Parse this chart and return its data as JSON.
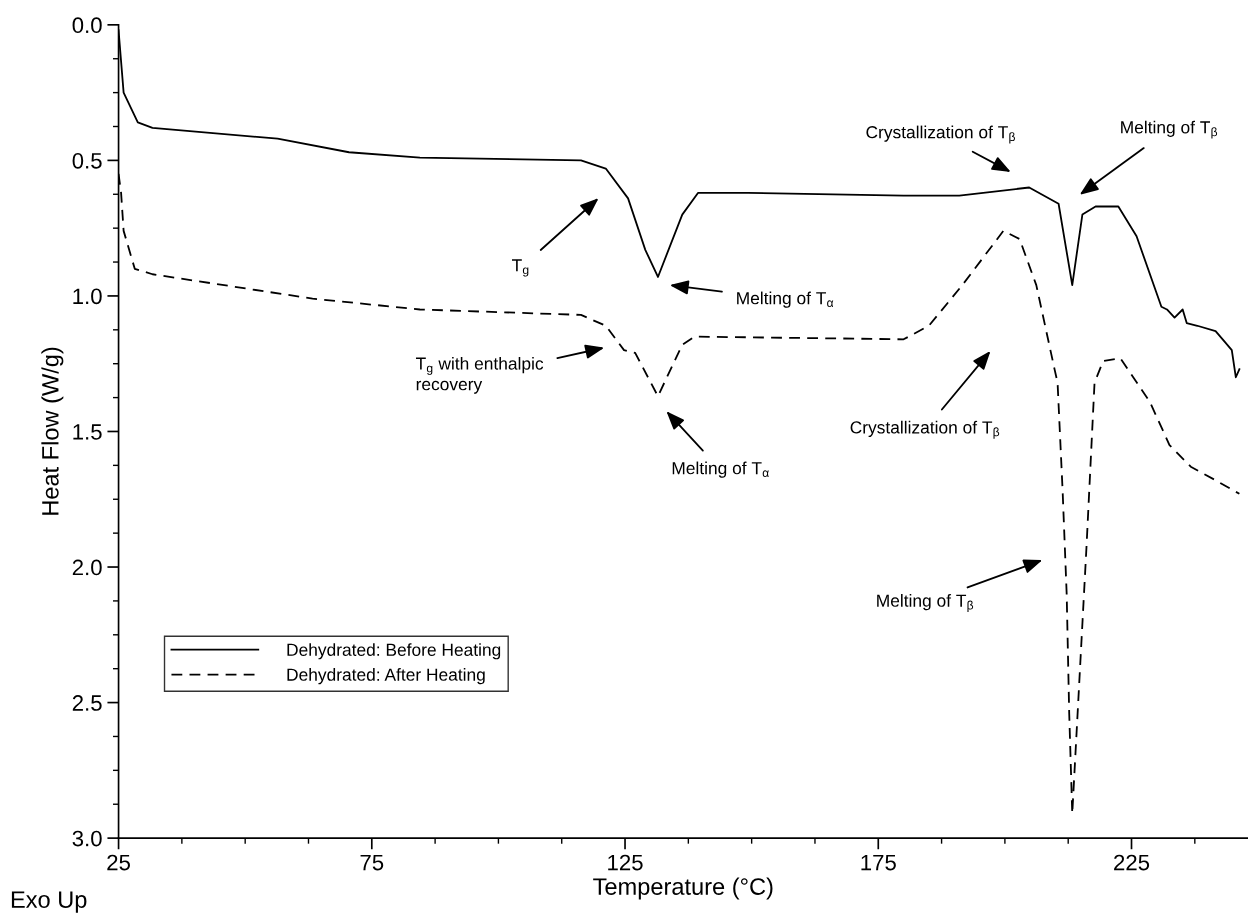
{
  "chart_data": {
    "type": "line",
    "xlabel": "Temperature (°C)",
    "ylabel": "Heat Flow (W/g)",
    "xlim": [
      25,
      248
    ],
    "xticks": [
      25,
      75,
      125,
      175,
      225
    ],
    "ylim": [
      3.0,
      0.0
    ],
    "yticks": [
      {
        "value": 0,
        "label": "0.0"
      },
      {
        "value": 0.5,
        "label": "0.5"
      },
      {
        "value": 1.0,
        "label": "1.0"
      },
      {
        "value": 1.5,
        "label": "1.5"
      },
      {
        "value": 2.0,
        "label": "2.0"
      },
      {
        "value": 2.5,
        "label": "2.5"
      },
      {
        "value": 3.0,
        "label": "3.0"
      }
    ],
    "grid": false,
    "legend": "bottom left",
    "marker": "none",
    "series": [
      {
        "name": "Dehydrated: Before Heating",
        "color": "#000000",
        "line_style": "solid",
        "x": [
          25,
          26,
          28.8,
          31.7,
          56.4,
          70.5,
          84.5,
          116.3,
          121.2,
          125.6,
          129,
          131.5,
          136.3,
          139.4,
          149.3,
          180,
          191,
          204.8,
          210.6,
          213.3,
          215.3,
          217.9,
          222.4,
          226,
          230.9,
          232,
          233.5,
          235.1,
          235.9,
          238,
          241.6,
          243,
          244.8,
          245.6,
          246.3
        ],
        "values": [
          0.02,
          0.25,
          0.36,
          0.38,
          0.42,
          0.47,
          0.49,
          0.5,
          0.53,
          0.64,
          0.83,
          0.93,
          0.7,
          0.62,
          0.62,
          0.63,
          0.63,
          0.6,
          0.66,
          0.96,
          0.7,
          0.67,
          0.67,
          0.78,
          1.04,
          1.05,
          1.08,
          1.05,
          1.1,
          1.11,
          1.13,
          1.16,
          1.2,
          1.3,
          1.27
        ]
      },
      {
        "name": "Dehydrated: After Heating",
        "color": "#000000",
        "line_style": "dashed",
        "x": [
          25,
          25.5,
          26,
          28.2,
          31.7,
          63.3,
          84.5,
          116.3,
          121.2,
          124.8,
          127,
          131.5,
          136.3,
          138.7,
          180,
          185,
          191.6,
          199.7,
          202.9,
          206.2,
          209.8,
          210.4,
          211.4,
          212.2,
          212.7,
          213.3,
          214.7,
          216.1,
          217.7,
          219.4,
          222.8,
          228.6,
          232.5,
          236.7,
          241.6,
          246.3
        ],
        "values": [
          0.55,
          0.62,
          0.76,
          0.9,
          0.92,
          1.01,
          1.05,
          1.07,
          1.11,
          1.2,
          1.21,
          1.37,
          1.18,
          1.15,
          1.16,
          1.11,
          0.96,
          0.76,
          0.79,
          0.96,
          1.27,
          1.32,
          1.72,
          2.1,
          2.54,
          2.91,
          2.42,
          1.93,
          1.32,
          1.24,
          1.23,
          1.39,
          1.55,
          1.63,
          1.68,
          1.73
        ]
      }
    ],
    "annotations": [
      "T$_{g}$",
      "Melting of T$_{α}$",
      "Crystallization of T$_{β}$",
      "Melting of T$_{β}$",
      "T$_{g}$ with enthalpic\nrecovery",
      "Melting of T$_{α}$",
      "Crystallization of T$_{β}$",
      "Melting of T$_{β}$",
      "Exo Up"
    ]
  }
}
